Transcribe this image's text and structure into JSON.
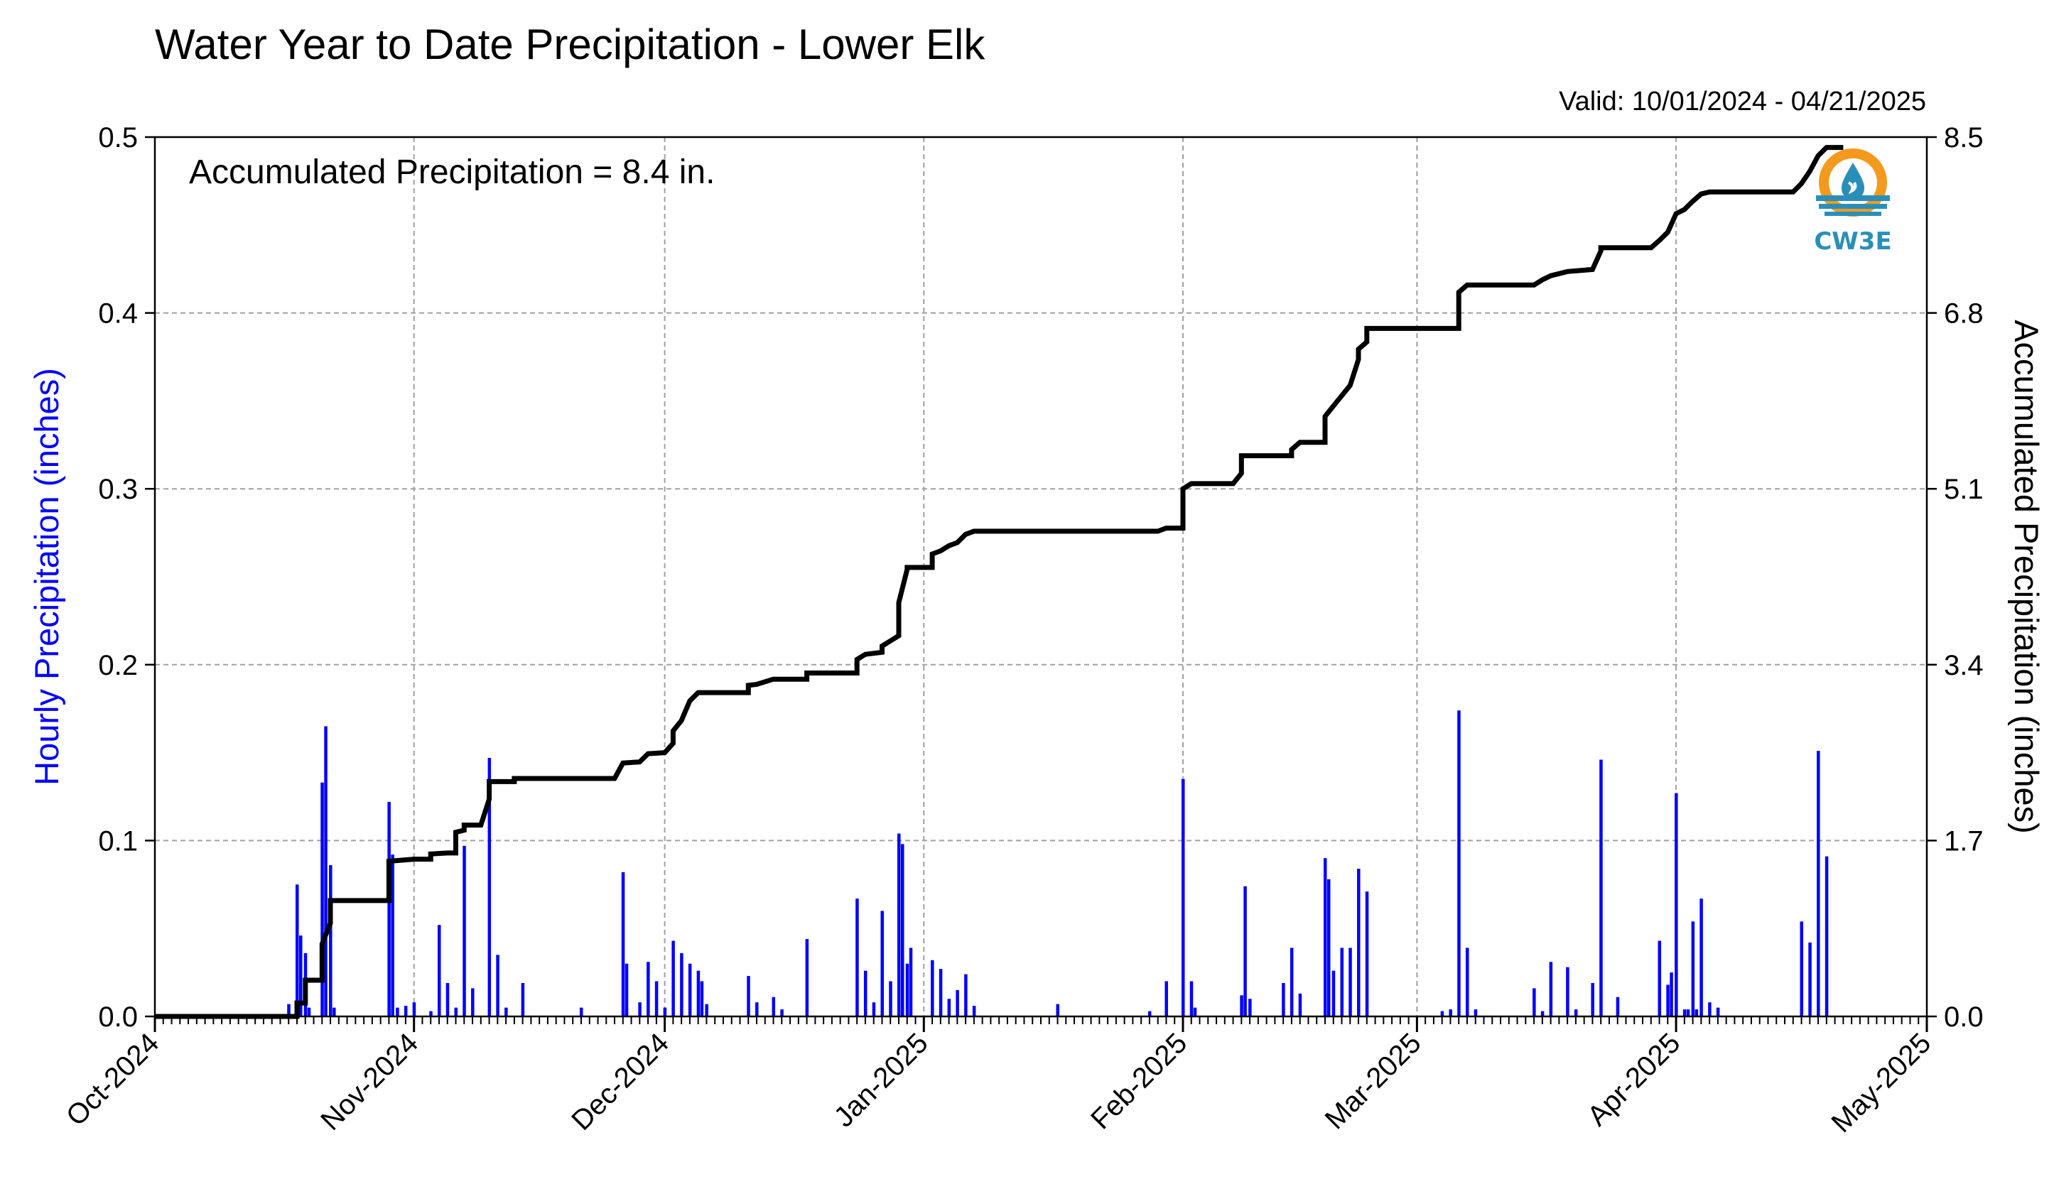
{
  "chart_title": "Water Year to Date Precipitation - Lower Elk",
  "valid_range": "Valid: 10/01/2024 - 04/21/2025",
  "annotation": "Accumulated Precipitation = 8.4 in.",
  "logo_text": "CW3E",
  "colors": {
    "hourly": "#0000ff",
    "accumulated": "#000000",
    "grid": "#a0a0a0",
    "logo_orange": "#f39a1e",
    "logo_blue": "#2a8fb8"
  },
  "chart_data": {
    "type": "bar",
    "x_axis": {
      "type": "date",
      "range": [
        "2024-10-01",
        "2025-05-01"
      ],
      "tick_labels": [
        "Oct-2024",
        "Nov-2024",
        "Dec-2024",
        "Jan-2025",
        "Feb-2025",
        "Mar-2025",
        "Apr-2025",
        "May-2025"
      ],
      "tick_dates": [
        "2024-10-01",
        "2024-11-01",
        "2024-12-01",
        "2025-01-01",
        "2025-02-01",
        "2025-03-01",
        "2025-04-01",
        "2025-05-01"
      ]
    },
    "y_left": {
      "label": "Hourly Precipitation (inches)",
      "range": [
        0,
        0.5
      ],
      "ticks": [
        "0.0",
        "0.1",
        "0.2",
        "0.3",
        "0.4",
        "0.5"
      ]
    },
    "y_right": {
      "label": "Accumulated Precipitation (inches)",
      "range": [
        0,
        8.5
      ],
      "ticks": [
        "0.0",
        "1.7",
        "3.4",
        "5.1",
        "6.8",
        "8.5"
      ]
    },
    "grid": true,
    "series": [
      {
        "type": "bar",
        "axis": "left",
        "points": [
          [
            "2024-10-17",
            0.007
          ],
          [
            "2024-10-18",
            0.075
          ],
          [
            "2024-10-18",
            0.046
          ],
          [
            "2024-10-19",
            0.036
          ],
          [
            "2024-10-19",
            0.005
          ],
          [
            "2024-10-21",
            0.133
          ],
          [
            "2024-10-21",
            0.165
          ],
          [
            "2024-10-22",
            0.086
          ],
          [
            "2024-10-22",
            0.005
          ],
          [
            "2024-10-29",
            0.122
          ],
          [
            "2024-10-29",
            0.092
          ],
          [
            "2024-10-30",
            0.005
          ],
          [
            "2024-10-31",
            0.006
          ],
          [
            "2024-11-01",
            0.008
          ],
          [
            "2024-11-03",
            0.003
          ],
          [
            "2024-11-04",
            0.052
          ],
          [
            "2024-11-05",
            0.019
          ],
          [
            "2024-11-06",
            0.005
          ],
          [
            "2024-11-07",
            0.097
          ],
          [
            "2024-11-08",
            0.016
          ],
          [
            "2024-11-10",
            0.147
          ],
          [
            "2024-11-11",
            0.035
          ],
          [
            "2024-11-12",
            0.005
          ],
          [
            "2024-11-14",
            0.019
          ],
          [
            "2024-11-21",
            0.005
          ],
          [
            "2024-11-26",
            0.082
          ],
          [
            "2024-11-26",
            0.03
          ],
          [
            "2024-11-28",
            0.008
          ],
          [
            "2024-11-29",
            0.031
          ],
          [
            "2024-11-30",
            0.02
          ],
          [
            "2024-12-01",
            0.005
          ],
          [
            "2024-12-02",
            0.043
          ],
          [
            "2024-12-03",
            0.036
          ],
          [
            "2024-12-04",
            0.03
          ],
          [
            "2024-12-05",
            0.026
          ],
          [
            "2024-12-05",
            0.02
          ],
          [
            "2024-12-06",
            0.007
          ],
          [
            "2024-12-11",
            0.023
          ],
          [
            "2024-12-12",
            0.008
          ],
          [
            "2024-12-14",
            0.011
          ],
          [
            "2024-12-15",
            0.004
          ],
          [
            "2024-12-18",
            0.044
          ],
          [
            "2024-12-24",
            0.067
          ],
          [
            "2024-12-25",
            0.026
          ],
          [
            "2024-12-26",
            0.008
          ],
          [
            "2024-12-27",
            0.06
          ],
          [
            "2024-12-28",
            0.02
          ],
          [
            "2024-12-29",
            0.104
          ],
          [
            "2024-12-29",
            0.098
          ],
          [
            "2024-12-30",
            0.03
          ],
          [
            "2024-12-30",
            0.039
          ],
          [
            "2025-01-02",
            0.032
          ],
          [
            "2025-01-03",
            0.027
          ],
          [
            "2025-01-04",
            0.01
          ],
          [
            "2025-01-05",
            0.015
          ],
          [
            "2025-01-06",
            0.024
          ],
          [
            "2025-01-07",
            0.006
          ],
          [
            "2025-01-17",
            0.007
          ],
          [
            "2025-01-28",
            0.003
          ],
          [
            "2025-01-30",
            0.02
          ],
          [
            "2025-02-01",
            0.135
          ],
          [
            "2025-02-02",
            0.02
          ],
          [
            "2025-02-02",
            0.005
          ],
          [
            "2025-02-08",
            0.012
          ],
          [
            "2025-02-08",
            0.074
          ],
          [
            "2025-02-09",
            0.01
          ],
          [
            "2025-02-13",
            0.019
          ],
          [
            "2025-02-14",
            0.039
          ],
          [
            "2025-02-15",
            0.013
          ],
          [
            "2025-02-18",
            0.09
          ],
          [
            "2025-02-18",
            0.078
          ],
          [
            "2025-02-19",
            0.026
          ],
          [
            "2025-02-20",
            0.039
          ],
          [
            "2025-02-21",
            0.039
          ],
          [
            "2025-02-22",
            0.084
          ],
          [
            "2025-02-23",
            0.071
          ],
          [
            "2025-03-04",
            0.003
          ],
          [
            "2025-03-05",
            0.004
          ],
          [
            "2025-03-06",
            0.174
          ],
          [
            "2025-03-07",
            0.039
          ],
          [
            "2025-03-08",
            0.004
          ],
          [
            "2025-03-15",
            0.016
          ],
          [
            "2025-03-16",
            0.003
          ],
          [
            "2025-03-17",
            0.031
          ],
          [
            "2025-03-19",
            0.028
          ],
          [
            "2025-03-20",
            0.004
          ],
          [
            "2025-03-22",
            0.019
          ],
          [
            "2025-03-23",
            0.146
          ],
          [
            "2025-03-25",
            0.011
          ],
          [
            "2025-03-30",
            0.043
          ],
          [
            "2025-03-31",
            0.018
          ],
          [
            "2025-03-31",
            0.025
          ],
          [
            "2025-04-01",
            0.127
          ],
          [
            "2025-04-02",
            0.004
          ],
          [
            "2025-04-02",
            0.004
          ],
          [
            "2025-04-03",
            0.054
          ],
          [
            "2025-04-03",
            0.004
          ],
          [
            "2025-04-04",
            0.067
          ],
          [
            "2025-04-05",
            0.008
          ],
          [
            "2025-04-06",
            0.005
          ],
          [
            "2025-04-16",
            0.054
          ],
          [
            "2025-04-17",
            0.042
          ],
          [
            "2025-04-18",
            0.151
          ],
          [
            "2025-04-19",
            0.091
          ]
        ]
      },
      {
        "type": "line",
        "axis": "right",
        "points": [
          [
            "2024-10-01",
            0.0
          ],
          [
            "2024-10-18",
            0.0
          ],
          [
            "2024-10-18",
            0.13
          ],
          [
            "2024-10-19",
            0.13
          ],
          [
            "2024-10-19",
            0.35
          ],
          [
            "2024-10-21",
            0.35
          ],
          [
            "2024-10-21",
            0.7
          ],
          [
            "2024-10-22",
            0.9
          ],
          [
            "2024-10-22",
            1.12
          ],
          [
            "2024-10-29",
            1.12
          ],
          [
            "2024-10-29",
            1.35
          ],
          [
            "2024-10-29",
            1.5
          ],
          [
            "2024-11-01",
            1.52
          ],
          [
            "2024-11-03",
            1.52
          ],
          [
            "2024-11-03",
            1.57
          ],
          [
            "2024-11-05",
            1.58
          ],
          [
            "2024-11-06",
            1.58
          ],
          [
            "2024-11-06",
            1.78
          ],
          [
            "2024-11-07",
            1.8
          ],
          [
            "2024-11-07",
            1.85
          ],
          [
            "2024-11-09",
            1.85
          ],
          [
            "2024-11-10",
            2.1
          ],
          [
            "2024-11-10",
            2.2
          ],
          [
            "2024-11-10",
            2.27
          ],
          [
            "2024-11-13",
            2.27
          ],
          [
            "2024-11-13",
            2.3
          ],
          [
            "2024-11-25",
            2.3
          ],
          [
            "2024-11-26",
            2.45
          ],
          [
            "2024-11-28",
            2.46
          ],
          [
            "2024-11-29",
            2.54
          ],
          [
            "2024-12-01",
            2.55
          ],
          [
            "2024-12-02",
            2.64
          ],
          [
            "2024-12-02",
            2.76
          ],
          [
            "2024-12-03",
            2.86
          ],
          [
            "2024-12-04",
            3.05
          ],
          [
            "2024-12-05",
            3.13
          ],
          [
            "2024-12-11",
            3.13
          ],
          [
            "2024-12-11",
            3.2
          ],
          [
            "2024-12-12",
            3.21
          ],
          [
            "2024-12-14",
            3.26
          ],
          [
            "2024-12-18",
            3.26
          ],
          [
            "2024-12-18",
            3.32
          ],
          [
            "2024-12-24",
            3.32
          ],
          [
            "2024-12-24",
            3.45
          ],
          [
            "2024-12-25",
            3.5
          ],
          [
            "2024-12-27",
            3.52
          ],
          [
            "2024-12-27",
            3.58
          ],
          [
            "2024-12-28",
            3.63
          ],
          [
            "2024-12-29",
            3.68
          ],
          [
            "2024-12-29",
            4.0
          ],
          [
            "2024-12-30",
            4.32
          ],
          [
            "2024-12-30",
            4.34
          ],
          [
            "2025-01-02",
            4.34
          ],
          [
            "2025-01-02",
            4.47
          ],
          [
            "2025-01-03",
            4.5
          ],
          [
            "2025-01-04",
            4.55
          ],
          [
            "2025-01-05",
            4.58
          ],
          [
            "2025-01-06",
            4.66
          ],
          [
            "2025-01-07",
            4.69
          ],
          [
            "2025-01-29",
            4.69
          ],
          [
            "2025-01-30",
            4.72
          ],
          [
            "2025-02-01",
            4.72
          ],
          [
            "2025-02-01",
            5.1
          ],
          [
            "2025-02-02",
            5.15
          ],
          [
            "2025-02-07",
            5.15
          ],
          [
            "2025-02-08",
            5.25
          ],
          [
            "2025-02-08",
            5.42
          ],
          [
            "2025-02-14",
            5.42
          ],
          [
            "2025-02-14",
            5.48
          ],
          [
            "2025-02-15",
            5.55
          ],
          [
            "2025-02-18",
            5.55
          ],
          [
            "2025-02-18",
            5.8
          ],
          [
            "2025-02-19",
            5.9
          ],
          [
            "2025-02-20",
            6.0
          ],
          [
            "2025-02-21",
            6.1
          ],
          [
            "2025-02-22",
            6.35
          ],
          [
            "2025-02-22",
            6.45
          ],
          [
            "2025-02-23",
            6.52
          ],
          [
            "2025-02-23",
            6.65
          ],
          [
            "2025-03-06",
            6.65
          ],
          [
            "2025-03-06",
            7.0
          ],
          [
            "2025-03-07",
            7.07
          ],
          [
            "2025-03-15",
            7.07
          ],
          [
            "2025-03-16",
            7.12
          ],
          [
            "2025-03-17",
            7.16
          ],
          [
            "2025-03-19",
            7.2
          ],
          [
            "2025-03-22",
            7.22
          ],
          [
            "2025-03-23",
            7.4
          ],
          [
            "2025-03-23",
            7.43
          ],
          [
            "2025-03-29",
            7.43
          ],
          [
            "2025-03-30",
            7.5
          ],
          [
            "2025-03-31",
            7.58
          ],
          [
            "2025-04-01",
            7.76
          ],
          [
            "2025-04-02",
            7.8
          ],
          [
            "2025-04-03",
            7.88
          ],
          [
            "2025-04-04",
            7.95
          ],
          [
            "2025-04-05",
            7.97
          ],
          [
            "2025-04-15",
            7.97
          ],
          [
            "2025-04-16",
            8.05
          ],
          [
            "2025-04-17",
            8.17
          ],
          [
            "2025-04-18",
            8.32
          ],
          [
            "2025-04-19",
            8.4
          ],
          [
            "2025-04-21",
            8.4
          ]
        ]
      }
    ]
  }
}
